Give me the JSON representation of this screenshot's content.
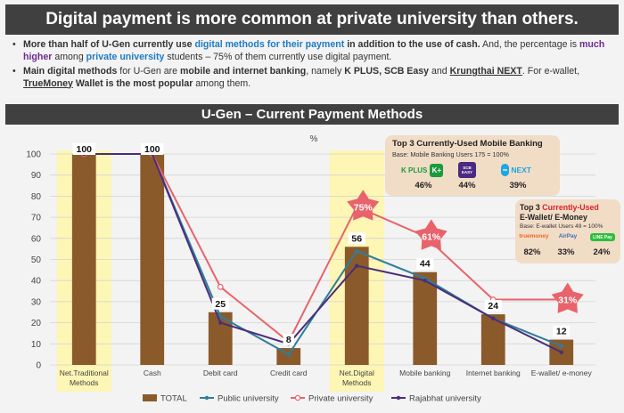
{
  "header": {
    "title": "Digital payment is more common at private university than others."
  },
  "bullets": [
    {
      "p1": "More than half of U-Gen currently use ",
      "p2": "digital methods for their payment",
      "p3": " in addition to the use of cash.",
      "p4": " And, the percentage is ",
      "p5": "much higher",
      "p6": " among ",
      "p7": "private university",
      "p8": " students – 75% of them currently use digital payment."
    },
    {
      "p1": "Main digital methods",
      "p2": " for U-Gen are ",
      "p3": "mobile and internet banking",
      "p4": ", namely ",
      "p5": "K PLUS, SCB Easy",
      "p6": " and ",
      "p7": "Krungthai NEXT",
      "p8": ". For e-wallet, ",
      "p9": "TrueMoney",
      "p10": " Wallet is the most popular",
      "p11": " among them."
    }
  ],
  "chart_data": {
    "type": "bar",
    "title": "U-Gen – Current Payment Methods",
    "unit": "%",
    "categories": [
      "Net.Traditional\nMethods",
      "Cash",
      "Debit card",
      "Credit card",
      "Net.Digital\nMethods",
      "Mobile banking",
      "Internet banking",
      "E-wallet/ e-money"
    ],
    "ylim": [
      0,
      100
    ],
    "yticks": [
      0,
      10,
      20,
      30,
      40,
      50,
      60,
      70,
      80,
      90,
      100
    ],
    "highlighted_categories": [
      "Net.Traditional\nMethods",
      "Net.Digital\nMethods"
    ],
    "series": [
      {
        "name": "TOTAL",
        "kind": "bar",
        "color": "#8b5a2b",
        "values": [
          100,
          100,
          25,
          8,
          56,
          44,
          24,
          12
        ],
        "labels": [
          "100",
          "100",
          "25",
          "8",
          "56",
          "44",
          "24",
          "12"
        ]
      },
      {
        "name": "Public university",
        "kind": "line",
        "color": "#2e7d9a",
        "values": [
          100,
          100,
          23,
          5,
          54,
          41,
          22,
          9
        ]
      },
      {
        "name": "Private university",
        "kind": "line",
        "color": "#e8636b",
        "values": [
          100,
          100,
          37,
          11,
          75,
          61,
          31,
          31
        ]
      },
      {
        "name": "Rajabhat university",
        "kind": "line",
        "color": "#4a2d7a",
        "values": [
          100,
          100,
          20,
          10,
          47,
          40,
          22,
          6
        ]
      }
    ],
    "star_callouts": [
      {
        "category": "Net.Digital\nMethods",
        "label": "75%"
      },
      {
        "category": "Mobile banking",
        "label": "61%"
      },
      {
        "category": "E-wallet/ e-money",
        "label": "31%"
      }
    ]
  },
  "mobile_box": {
    "title": "Top 3 Currently-Used Mobile Banking",
    "base": "Base:     Mobile Banking Users 175 = 100%",
    "items": [
      {
        "logo": "K PLUS",
        "pct": "46%"
      },
      {
        "logo": "SCB EASY",
        "pct": "44%"
      },
      {
        "logo": "NEXT",
        "pct": "39%"
      }
    ]
  },
  "wallet_box": {
    "title_a": "Top 3 ",
    "title_b": "Currently-Used",
    "title_c": "E-Wallet/ E-Money",
    "base": "Base: E-wallet Users 49 = 100%",
    "items": [
      {
        "logo": "truemoney",
        "pct": "82%"
      },
      {
        "logo": "AirPay",
        "pct": "33%"
      },
      {
        "logo": "LINE Pay",
        "pct": "24%"
      }
    ]
  },
  "colors": {
    "accent_blue": "#1f7bc1",
    "accent_purple": "#6a2c91",
    "bar": "#8b5a2b",
    "highlight": "#fdf6b4",
    "star": "#e8636b"
  }
}
